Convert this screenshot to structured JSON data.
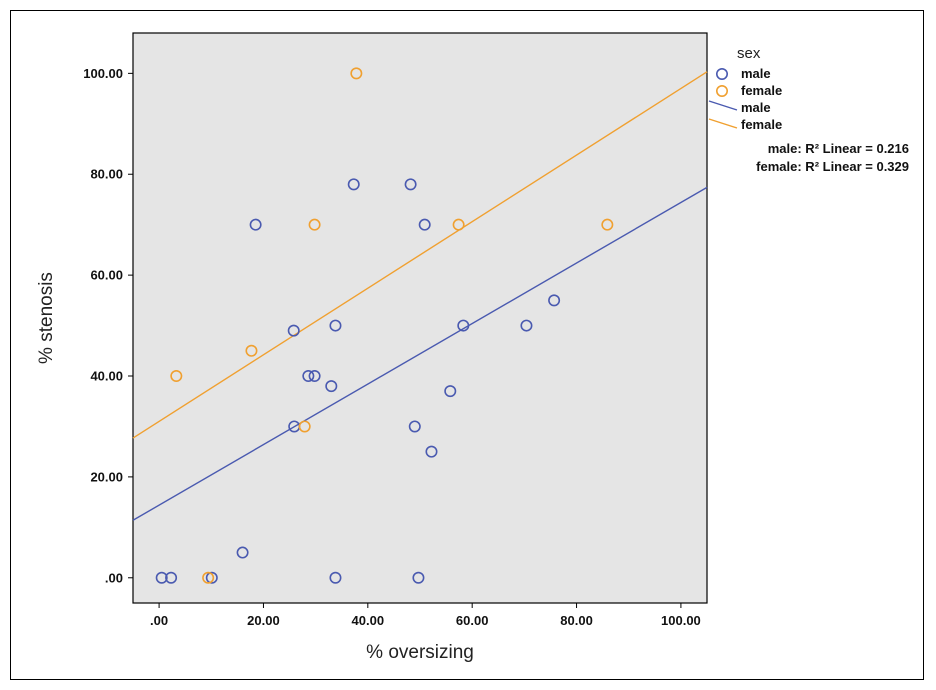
{
  "chart_data": {
    "type": "scatter",
    "xlabel": "% oversizing",
    "ylabel": "% stenosis",
    "xlim": [
      -5,
      105
    ],
    "ylim": [
      -5,
      108
    ],
    "xticks": [
      0,
      20,
      40,
      60,
      80,
      100
    ],
    "xtick_labels": [
      ".00",
      "20.00",
      "40.00",
      "60.00",
      "80.00",
      "100.00"
    ],
    "yticks": [
      0,
      20,
      40,
      60,
      80,
      100
    ],
    "ytick_labels": [
      ".00",
      "20.00",
      "40.00",
      "60.00",
      "80.00",
      "100.00"
    ],
    "grid": false,
    "background": "#e5e5e5",
    "legend": {
      "title": "sex",
      "placement": "right",
      "items": [
        {
          "label": "male",
          "kind": "marker",
          "series": "male"
        },
        {
          "label": "female",
          "kind": "marker",
          "series": "female"
        },
        {
          "label": "male",
          "kind": "line",
          "series": "male"
        },
        {
          "label": "female",
          "kind": "line",
          "series": "female"
        }
      ]
    },
    "annotations": [
      "male: R² Linear = 0.216",
      "female: R² Linear = 0.329"
    ],
    "series": [
      {
        "name": "male",
        "color": "#4a5ab0",
        "points": [
          [
            0.5,
            0
          ],
          [
            2.3,
            0
          ],
          [
            10.1,
            0
          ],
          [
            16,
            5
          ],
          [
            18.5,
            70
          ],
          [
            25.8,
            49
          ],
          [
            25.9,
            30
          ],
          [
            28.6,
            40
          ],
          [
            29.8,
            40
          ],
          [
            33,
            38
          ],
          [
            33.8,
            50
          ],
          [
            33.8,
            0
          ],
          [
            37.3,
            78
          ],
          [
            48.2,
            78
          ],
          [
            49,
            30
          ],
          [
            49.7,
            0
          ],
          [
            50.9,
            70
          ],
          [
            52.2,
            25
          ],
          [
            55.8,
            37
          ],
          [
            58.3,
            50
          ],
          [
            70.4,
            50
          ],
          [
            75.7,
            55
          ]
        ],
        "fit": {
          "slope": 0.6,
          "intercept": 14.4
        }
      },
      {
        "name": "female",
        "color": "#f0a030",
        "points": [
          [
            3.3,
            40
          ],
          [
            9.4,
            0
          ],
          [
            17.7,
            45
          ],
          [
            27.9,
            30
          ],
          [
            29.8,
            70
          ],
          [
            37.8,
            100
          ],
          [
            57.4,
            70
          ],
          [
            85.9,
            70
          ]
        ],
        "fit": {
          "slope": 0.66,
          "intercept": 31
        }
      }
    ]
  }
}
